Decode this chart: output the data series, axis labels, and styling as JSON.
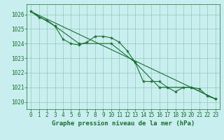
{
  "title": "Graphe pression niveau de la mer (hPa)",
  "background_color": "#c8eef0",
  "plot_bg_color": "#c8eef0",
  "grid_color": "#90c8b8",
  "line_color": "#1a6e2e",
  "marker_color": "#1a6e2e",
  "xlim": [
    -0.5,
    23.5
  ],
  "ylim": [
    1019.5,
    1026.7
  ],
  "yticks": [
    1020,
    1021,
    1022,
    1023,
    1024,
    1025,
    1026
  ],
  "xticks": [
    0,
    1,
    2,
    3,
    4,
    5,
    6,
    7,
    8,
    9,
    10,
    11,
    12,
    13,
    14,
    15,
    16,
    17,
    18,
    19,
    20,
    21,
    22,
    23
  ],
  "series1_x": [
    0,
    1,
    2,
    3,
    4,
    5,
    6,
    7,
    8,
    9,
    10,
    11,
    12,
    13,
    14,
    15,
    16,
    17,
    18,
    19,
    20,
    21,
    22,
    23
  ],
  "series1_y": [
    1026.2,
    1025.8,
    1025.6,
    1025.2,
    1024.3,
    1024.0,
    1023.9,
    1024.1,
    1024.5,
    1024.5,
    1024.4,
    1024.1,
    1023.5,
    1022.7,
    1021.4,
    1021.4,
    1021.4,
    1021.0,
    1020.7,
    1021.0,
    1021.0,
    1020.9,
    1020.4,
    1020.2
  ],
  "series2_x": [
    0,
    3,
    6,
    10,
    13,
    16,
    20,
    23
  ],
  "series2_y": [
    1026.2,
    1025.2,
    1024.0,
    1024.0,
    1022.7,
    1021.0,
    1021.0,
    1020.2
  ],
  "series3_x": [
    0,
    23
  ],
  "series3_y": [
    1026.2,
    1020.2
  ],
  "tick_fontsize": 5.5,
  "title_fontsize": 6.5
}
